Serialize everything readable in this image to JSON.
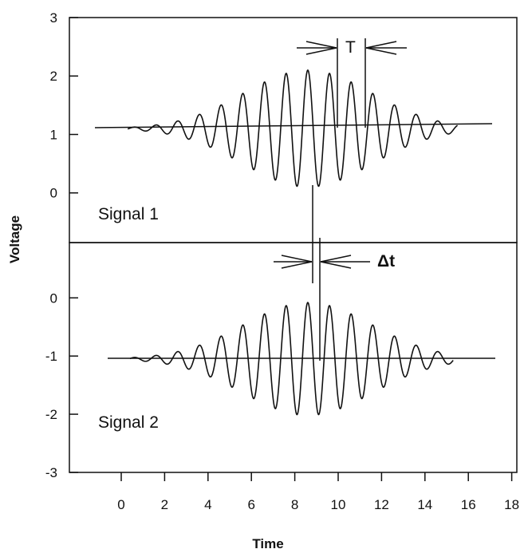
{
  "chart_data": {
    "type": "line",
    "xlabel": "Time",
    "ylabel": "Voltage",
    "x_ticks": [
      "0",
      "2",
      "4",
      "6",
      "8",
      "10",
      "12",
      "14",
      "16",
      "18"
    ],
    "xlim": [
      -1.2,
      18
    ],
    "grid": false,
    "panels": [
      {
        "label": "Signal 1",
        "ylim": [
          -0.85,
          3
        ],
        "y_ticks": [
          "0",
          "1",
          "2",
          "3"
        ],
        "baseline": 1.1,
        "amplitude_max": 1.0,
        "period": 1.0,
        "peak_time": 8.6,
        "envelope_width": 4.2,
        "t_start": 0.3,
        "t_end": 15.5,
        "annotation": "T"
      },
      {
        "label": "Signal 2",
        "ylim": [
          -3,
          0.95
        ],
        "y_ticks": [
          "0",
          "-1",
          "-2",
          "-3"
        ],
        "baseline": -1.05,
        "amplitude_max": 0.97,
        "period": 1.0,
        "peak_time": 8.6,
        "envelope_width": 4.2,
        "t_start": 0.4,
        "t_end": 15.3,
        "annotation": "Δt"
      }
    ]
  }
}
